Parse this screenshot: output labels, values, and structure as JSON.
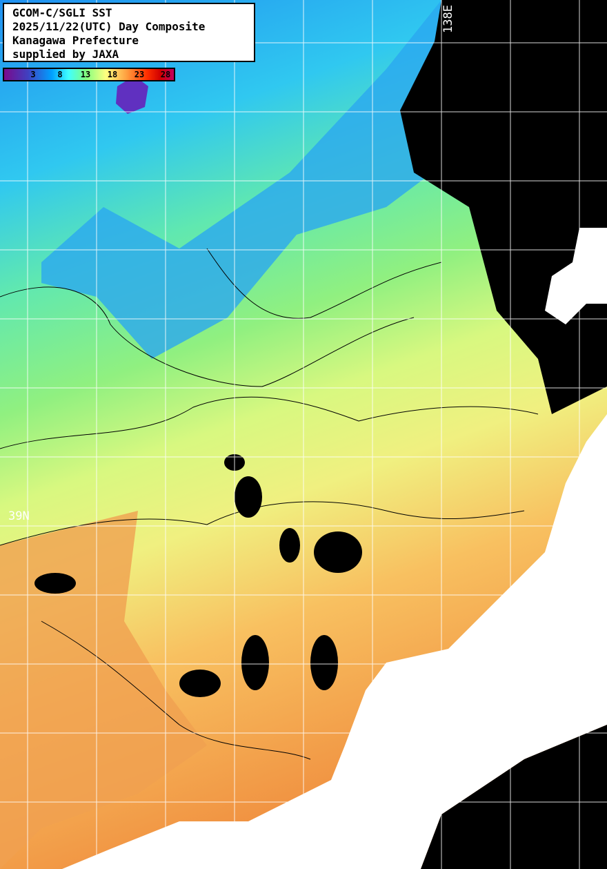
{
  "title_box": {
    "lines": [
      "GCOM-C/SGLI SST",
      "2025/11/22(UTC) Day Composite",
      "Kanagawa Prefecture",
      "supplied by JAXA"
    ]
  },
  "colorbar": {
    "ticks": [
      "3",
      "8",
      "13",
      "18",
      "23",
      "28"
    ],
    "unit_colors": {
      "cold": "#7a0a8c",
      "mid": "#80ff80",
      "warm": "#ff3000",
      "hot": "#c00060"
    }
  },
  "grid_labels": {
    "longitude": "138E",
    "latitude": "39N"
  },
  "colors": {
    "land": "#ffffff",
    "no_data": "#000000",
    "contour": "#000000",
    "grid": "#ffffff"
  }
}
